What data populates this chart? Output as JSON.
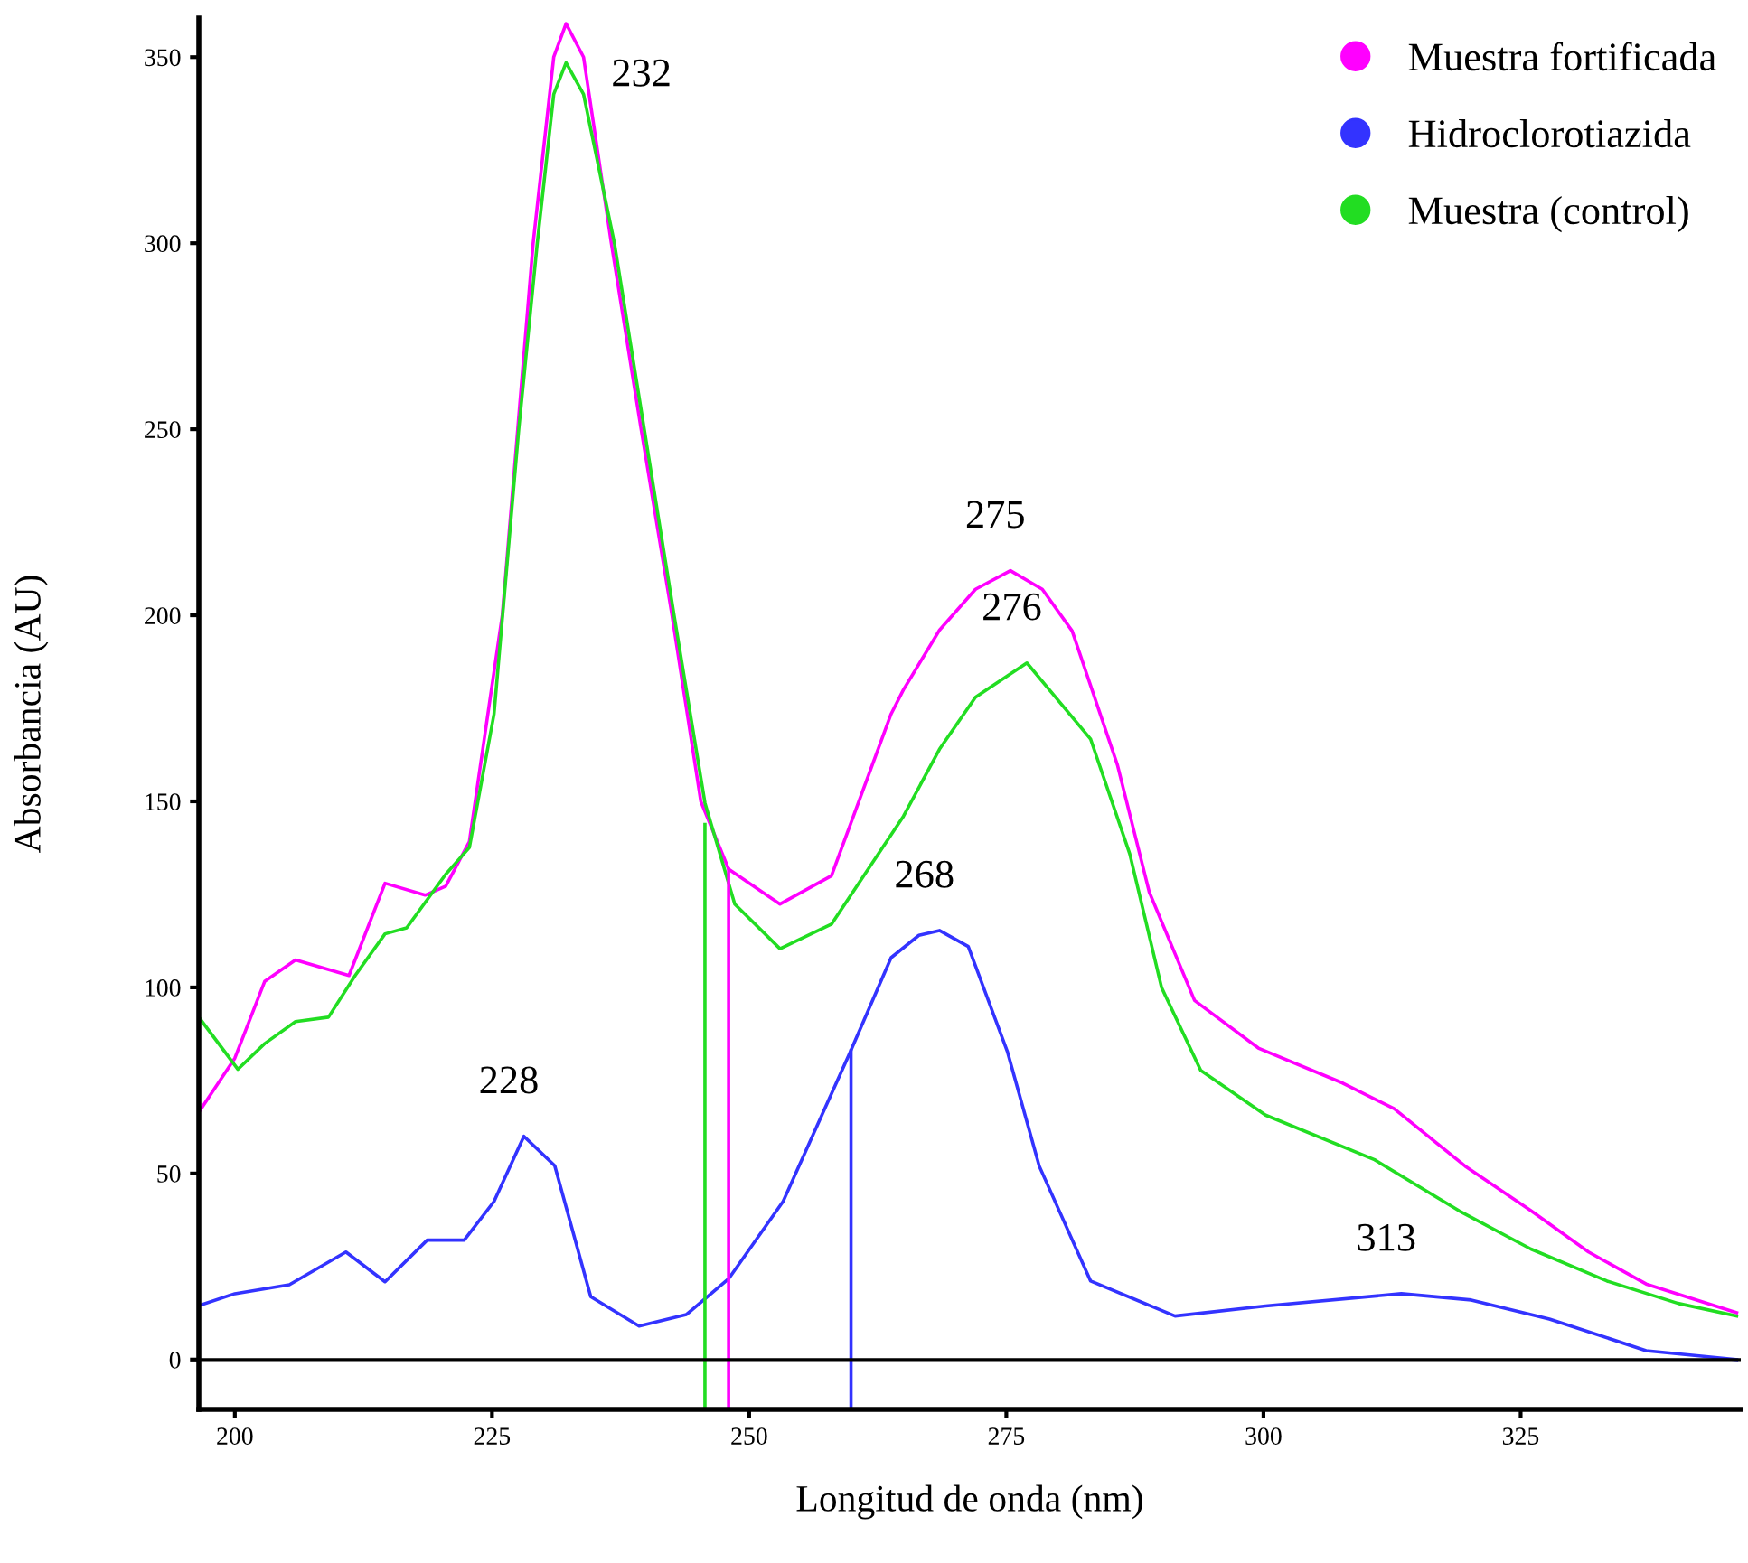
{
  "chart_data": {
    "type": "line",
    "xlabel": "Longitud de onda (nm)",
    "ylabel": "Absorbancia (AU)",
    "xlim": [
      196.5,
      346.4
    ],
    "ylim": [
      -13.4,
      360.5
    ],
    "xticks": [
      200,
      225,
      250,
      275,
      300,
      325
    ],
    "yticks": [
      0,
      50,
      100,
      150,
      200,
      250,
      300,
      350
    ],
    "grid": false,
    "legend": "top right",
    "marker": "none",
    "line_style": "solid",
    "series": [
      {
        "name": "Muestra fortificada",
        "color": "#ff00ff",
        "x": [
          196.5,
          200,
          202.9,
          205.9,
          211.1,
          214.6,
          218.5,
          220.5,
          222.8,
          224.6,
          226,
          227.5,
          229,
          231,
          232.2,
          233.9,
          236.6,
          239.5,
          242.5,
          245.3,
          248,
          253,
          258,
          263.8,
          265,
          268.5,
          272,
          275.4,
          278.5,
          281.4,
          285.8,
          288.9,
          293.3,
          299.5,
          307.7,
          312.7,
          319.6,
          326,
          331.6,
          337.2,
          346
        ],
        "values": [
          66.5,
          81,
          101.6,
          107.4,
          103.2,
          128,
          124.8,
          127.2,
          139.2,
          173.5,
          200,
          250,
          300,
          350,
          359,
          350,
          300,
          250,
          200,
          150,
          131.8,
          122.4,
          130,
          173.5,
          180,
          196,
          207,
          212,
          207,
          195.8,
          159.8,
          125.6,
          96.5,
          83.7,
          74.3,
          67.4,
          52,
          40,
          28.9,
          20.3,
          12.6
        ]
      },
      {
        "name": "Hidroclorotiazida",
        "color": "#3333ff",
        "x": [
          196.5,
          200,
          205.3,
          210.8,
          214.6,
          218.7,
          222.3,
          225.2,
          228.1,
          231.1,
          234.6,
          239.3,
          243.9,
          248,
          253.3,
          259.8,
          263.8,
          266.5,
          268.5,
          271.3,
          275.1,
          278.2,
          283.2,
          291.4,
          300.2,
          313.4,
          320.2,
          327.8,
          337.2,
          346
        ],
        "values": [
          14.5,
          17.7,
          20.1,
          28.9,
          20.9,
          32.1,
          32.1,
          42.5,
          60,
          52.1,
          16.9,
          9,
          12.1,
          21.7,
          42.5,
          82.5,
          108,
          114,
          115.3,
          111,
          82.8,
          52,
          21.1,
          11.7,
          14.4,
          17.7,
          16,
          10.9,
          2.4,
          0
        ]
      },
      {
        "name": "Muestra (control)",
        "color": "#22dd22",
        "x": [
          196.5,
          200.3,
          202.9,
          205.9,
          209.1,
          211.7,
          214.6,
          216.7,
          220.5,
          222.8,
          225.2,
          227.6,
          229.4,
          231,
          232.2,
          233.9,
          236.9,
          239.8,
          242.7,
          245.7,
          248.6,
          253,
          258,
          265,
          268.5,
          272,
          277,
          283.2,
          287,
          290.1,
          293.9,
          300.2,
          310.8,
          319,
          326,
          333.4,
          340.3,
          346
        ],
        "values": [
          92,
          78,
          84.9,
          90.8,
          92,
          103.2,
          114.4,
          116,
          130.4,
          137.6,
          173.5,
          250,
          300,
          340,
          348.5,
          340,
          300,
          250,
          200,
          149.6,
          122.4,
          110.4,
          117,
          146,
          164,
          178,
          187.2,
          166.7,
          135.9,
          99.9,
          77.7,
          65.7,
          53.7,
          40,
          29.7,
          21.1,
          15.1,
          11.7
        ]
      },
      {
        "color": "#22dd22",
        "x": [
          245.7,
          245.7
        ],
        "values": [
          -13.4,
          143.8
        ]
      },
      {
        "color": "#ff00ff",
        "x": [
          248.0,
          248.0
        ],
        "values": [
          -13.4,
          131.8
        ]
      },
      {
        "color": "#3333ff",
        "x": [
          259.9,
          259.9
        ],
        "values": [
          -13.4,
          83
        ]
      }
    ],
    "ref_lines": [
      {
        "axis": "y",
        "value": 0,
        "color": "#000000"
      }
    ],
    "annotations": [
      {
        "text": "232",
        "x": 232.2,
        "y": 359
      },
      {
        "text": "228",
        "x": 228.1,
        "y": 60
      },
      {
        "text": "275",
        "x": 275.4,
        "y": 212
      },
      {
        "text": "276",
        "x": 277,
        "y": 187.2
      },
      {
        "text": "268",
        "x": 268.5,
        "y": 115.3
      },
      {
        "text": "313",
        "x": 313.4,
        "y": 17.7
      }
    ]
  }
}
